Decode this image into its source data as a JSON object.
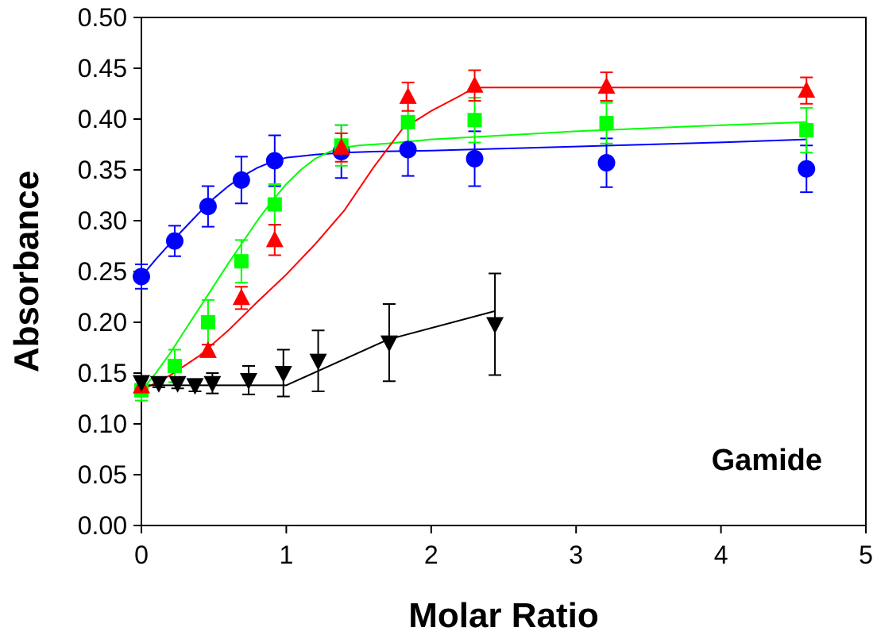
{
  "chart_data": {
    "type": "scatter",
    "title": "",
    "xlabel": "Molar Ratio",
    "ylabel": "Absorbance",
    "annotation": "Gamide",
    "xlim": [
      0,
      5
    ],
    "ylim": [
      0,
      0.5
    ],
    "xticks": [
      "0",
      "1",
      "2",
      "3",
      "4",
      "5"
    ],
    "yticks": [
      "0.00",
      "0.05",
      "0.10",
      "0.15",
      "0.20",
      "0.25",
      "0.30",
      "0.35",
      "0.40",
      "0.45",
      "0.50"
    ],
    "xtick_values": [
      0,
      1,
      2,
      3,
      4,
      5
    ],
    "ytick_values": [
      0,
      0.05,
      0.1,
      0.15,
      0.2,
      0.25,
      0.3,
      0.35,
      0.4,
      0.45,
      0.5
    ],
    "grid": false,
    "series": [
      {
        "color": "#0000ff",
        "marker": "circle",
        "points": [
          {
            "x": 0.0,
            "y": 0.245,
            "err": 0.012
          },
          {
            "x": 0.23,
            "y": 0.28,
            "err": 0.015
          },
          {
            "x": 0.46,
            "y": 0.314,
            "err": 0.02
          },
          {
            "x": 0.69,
            "y": 0.34,
            "err": 0.023
          },
          {
            "x": 0.92,
            "y": 0.359,
            "err": 0.025
          },
          {
            "x": 1.38,
            "y": 0.368,
            "err": 0.026
          },
          {
            "x": 1.84,
            "y": 0.37,
            "err": 0.026
          },
          {
            "x": 2.3,
            "y": 0.361,
            "err": 0.027
          },
          {
            "x": 3.21,
            "y": 0.357,
            "err": 0.024
          },
          {
            "x": 4.59,
            "y": 0.351,
            "err": 0.023
          }
        ],
        "fit": [
          [
            0,
            0.245
          ],
          [
            0.1,
            0.262
          ],
          [
            0.2,
            0.278
          ],
          [
            0.3,
            0.293
          ],
          [
            0.4,
            0.308
          ],
          [
            0.5,
            0.322
          ],
          [
            0.6,
            0.334
          ],
          [
            0.7,
            0.344
          ],
          [
            0.8,
            0.352
          ],
          [
            0.9,
            0.358
          ],
          [
            1.0,
            0.362
          ],
          [
            1.2,
            0.365
          ],
          [
            1.4,
            0.367
          ],
          [
            1.6,
            0.368
          ],
          [
            2.0,
            0.369
          ],
          [
            2.5,
            0.371
          ],
          [
            3.0,
            0.373
          ],
          [
            3.5,
            0.375
          ],
          [
            4.0,
            0.377
          ],
          [
            4.59,
            0.38
          ]
        ]
      },
      {
        "color": "#00ff00",
        "marker": "square",
        "points": [
          {
            "x": 0.0,
            "y": 0.133,
            "err": 0.01
          },
          {
            "x": 0.23,
            "y": 0.157,
            "err": 0.016
          },
          {
            "x": 0.46,
            "y": 0.2,
            "err": 0.022
          },
          {
            "x": 0.69,
            "y": 0.26,
            "err": 0.021
          },
          {
            "x": 0.92,
            "y": 0.316,
            "err": 0.02
          },
          {
            "x": 1.38,
            "y": 0.374,
            "err": 0.02
          },
          {
            "x": 1.84,
            "y": 0.397,
            "err": 0.022
          },
          {
            "x": 2.3,
            "y": 0.399,
            "err": 0.022
          },
          {
            "x": 3.21,
            "y": 0.396,
            "err": 0.02
          },
          {
            "x": 4.59,
            "y": 0.389,
            "err": 0.022
          }
        ],
        "fit": [
          [
            0,
            0.133
          ],
          [
            0.1,
            0.15
          ],
          [
            0.2,
            0.17
          ],
          [
            0.3,
            0.192
          ],
          [
            0.4,
            0.214
          ],
          [
            0.5,
            0.236
          ],
          [
            0.6,
            0.258
          ],
          [
            0.7,
            0.279
          ],
          [
            0.8,
            0.3
          ],
          [
            0.9,
            0.319
          ],
          [
            1.0,
            0.336
          ],
          [
            1.1,
            0.35
          ],
          [
            1.2,
            0.361
          ],
          [
            1.3,
            0.368
          ],
          [
            1.4,
            0.372
          ],
          [
            1.5,
            0.374
          ],
          [
            1.7,
            0.376
          ],
          [
            2.0,
            0.38
          ],
          [
            2.5,
            0.384
          ],
          [
            3.0,
            0.388
          ],
          [
            3.5,
            0.391
          ],
          [
            4.0,
            0.394
          ],
          [
            4.59,
            0.397
          ]
        ]
      },
      {
        "color": "#ff0000",
        "marker": "triangle-up",
        "points": [
          {
            "x": 0.0,
            "y": 0.137,
            "err": 0.008
          },
          {
            "x": 0.46,
            "y": 0.172,
            "err": 0.006
          },
          {
            "x": 0.69,
            "y": 0.224,
            "err": 0.011
          },
          {
            "x": 0.92,
            "y": 0.281,
            "err": 0.015
          },
          {
            "x": 1.38,
            "y": 0.372,
            "err": 0.014
          },
          {
            "x": 1.84,
            "y": 0.422,
            "err": 0.014
          },
          {
            "x": 2.3,
            "y": 0.433,
            "err": 0.015
          },
          {
            "x": 3.21,
            "y": 0.432,
            "err": 0.014
          },
          {
            "x": 4.59,
            "y": 0.428,
            "err": 0.013
          }
        ],
        "fit": [
          [
            0,
            0.133
          ],
          [
            0.2,
            0.148
          ],
          [
            0.4,
            0.167
          ],
          [
            0.6,
            0.192
          ],
          [
            0.8,
            0.22
          ],
          [
            1.0,
            0.247
          ],
          [
            1.2,
            0.277
          ],
          [
            1.4,
            0.31
          ],
          [
            1.6,
            0.352
          ],
          [
            1.8,
            0.39
          ],
          [
            2.0,
            0.408
          ],
          [
            2.2,
            0.423
          ],
          [
            2.3,
            0.431
          ],
          [
            3.0,
            0.431
          ],
          [
            4.59,
            0.431
          ]
        ]
      },
      {
        "color": "#000000",
        "marker": "triangle-down",
        "points": [
          {
            "x": 0.0,
            "y": 0.141,
            "err": 0.006
          },
          {
            "x": 0.12,
            "y": 0.14,
            "err": 0.004
          },
          {
            "x": 0.25,
            "y": 0.14,
            "err": 0.005
          },
          {
            "x": 0.37,
            "y": 0.138,
            "err": 0.006
          },
          {
            "x": 0.49,
            "y": 0.14,
            "err": 0.01
          },
          {
            "x": 0.74,
            "y": 0.143,
            "err": 0.014
          },
          {
            "x": 0.98,
            "y": 0.15,
            "err": 0.023
          },
          {
            "x": 1.22,
            "y": 0.162,
            "err": 0.03
          },
          {
            "x": 1.71,
            "y": 0.18,
            "err": 0.038
          },
          {
            "x": 2.44,
            "y": 0.198,
            "err": 0.05
          }
        ],
        "fit": [
          [
            0,
            0.138
          ],
          [
            1.0,
            0.138
          ],
          [
            1.7,
            0.183
          ],
          [
            2.44,
            0.211
          ]
        ]
      }
    ]
  }
}
